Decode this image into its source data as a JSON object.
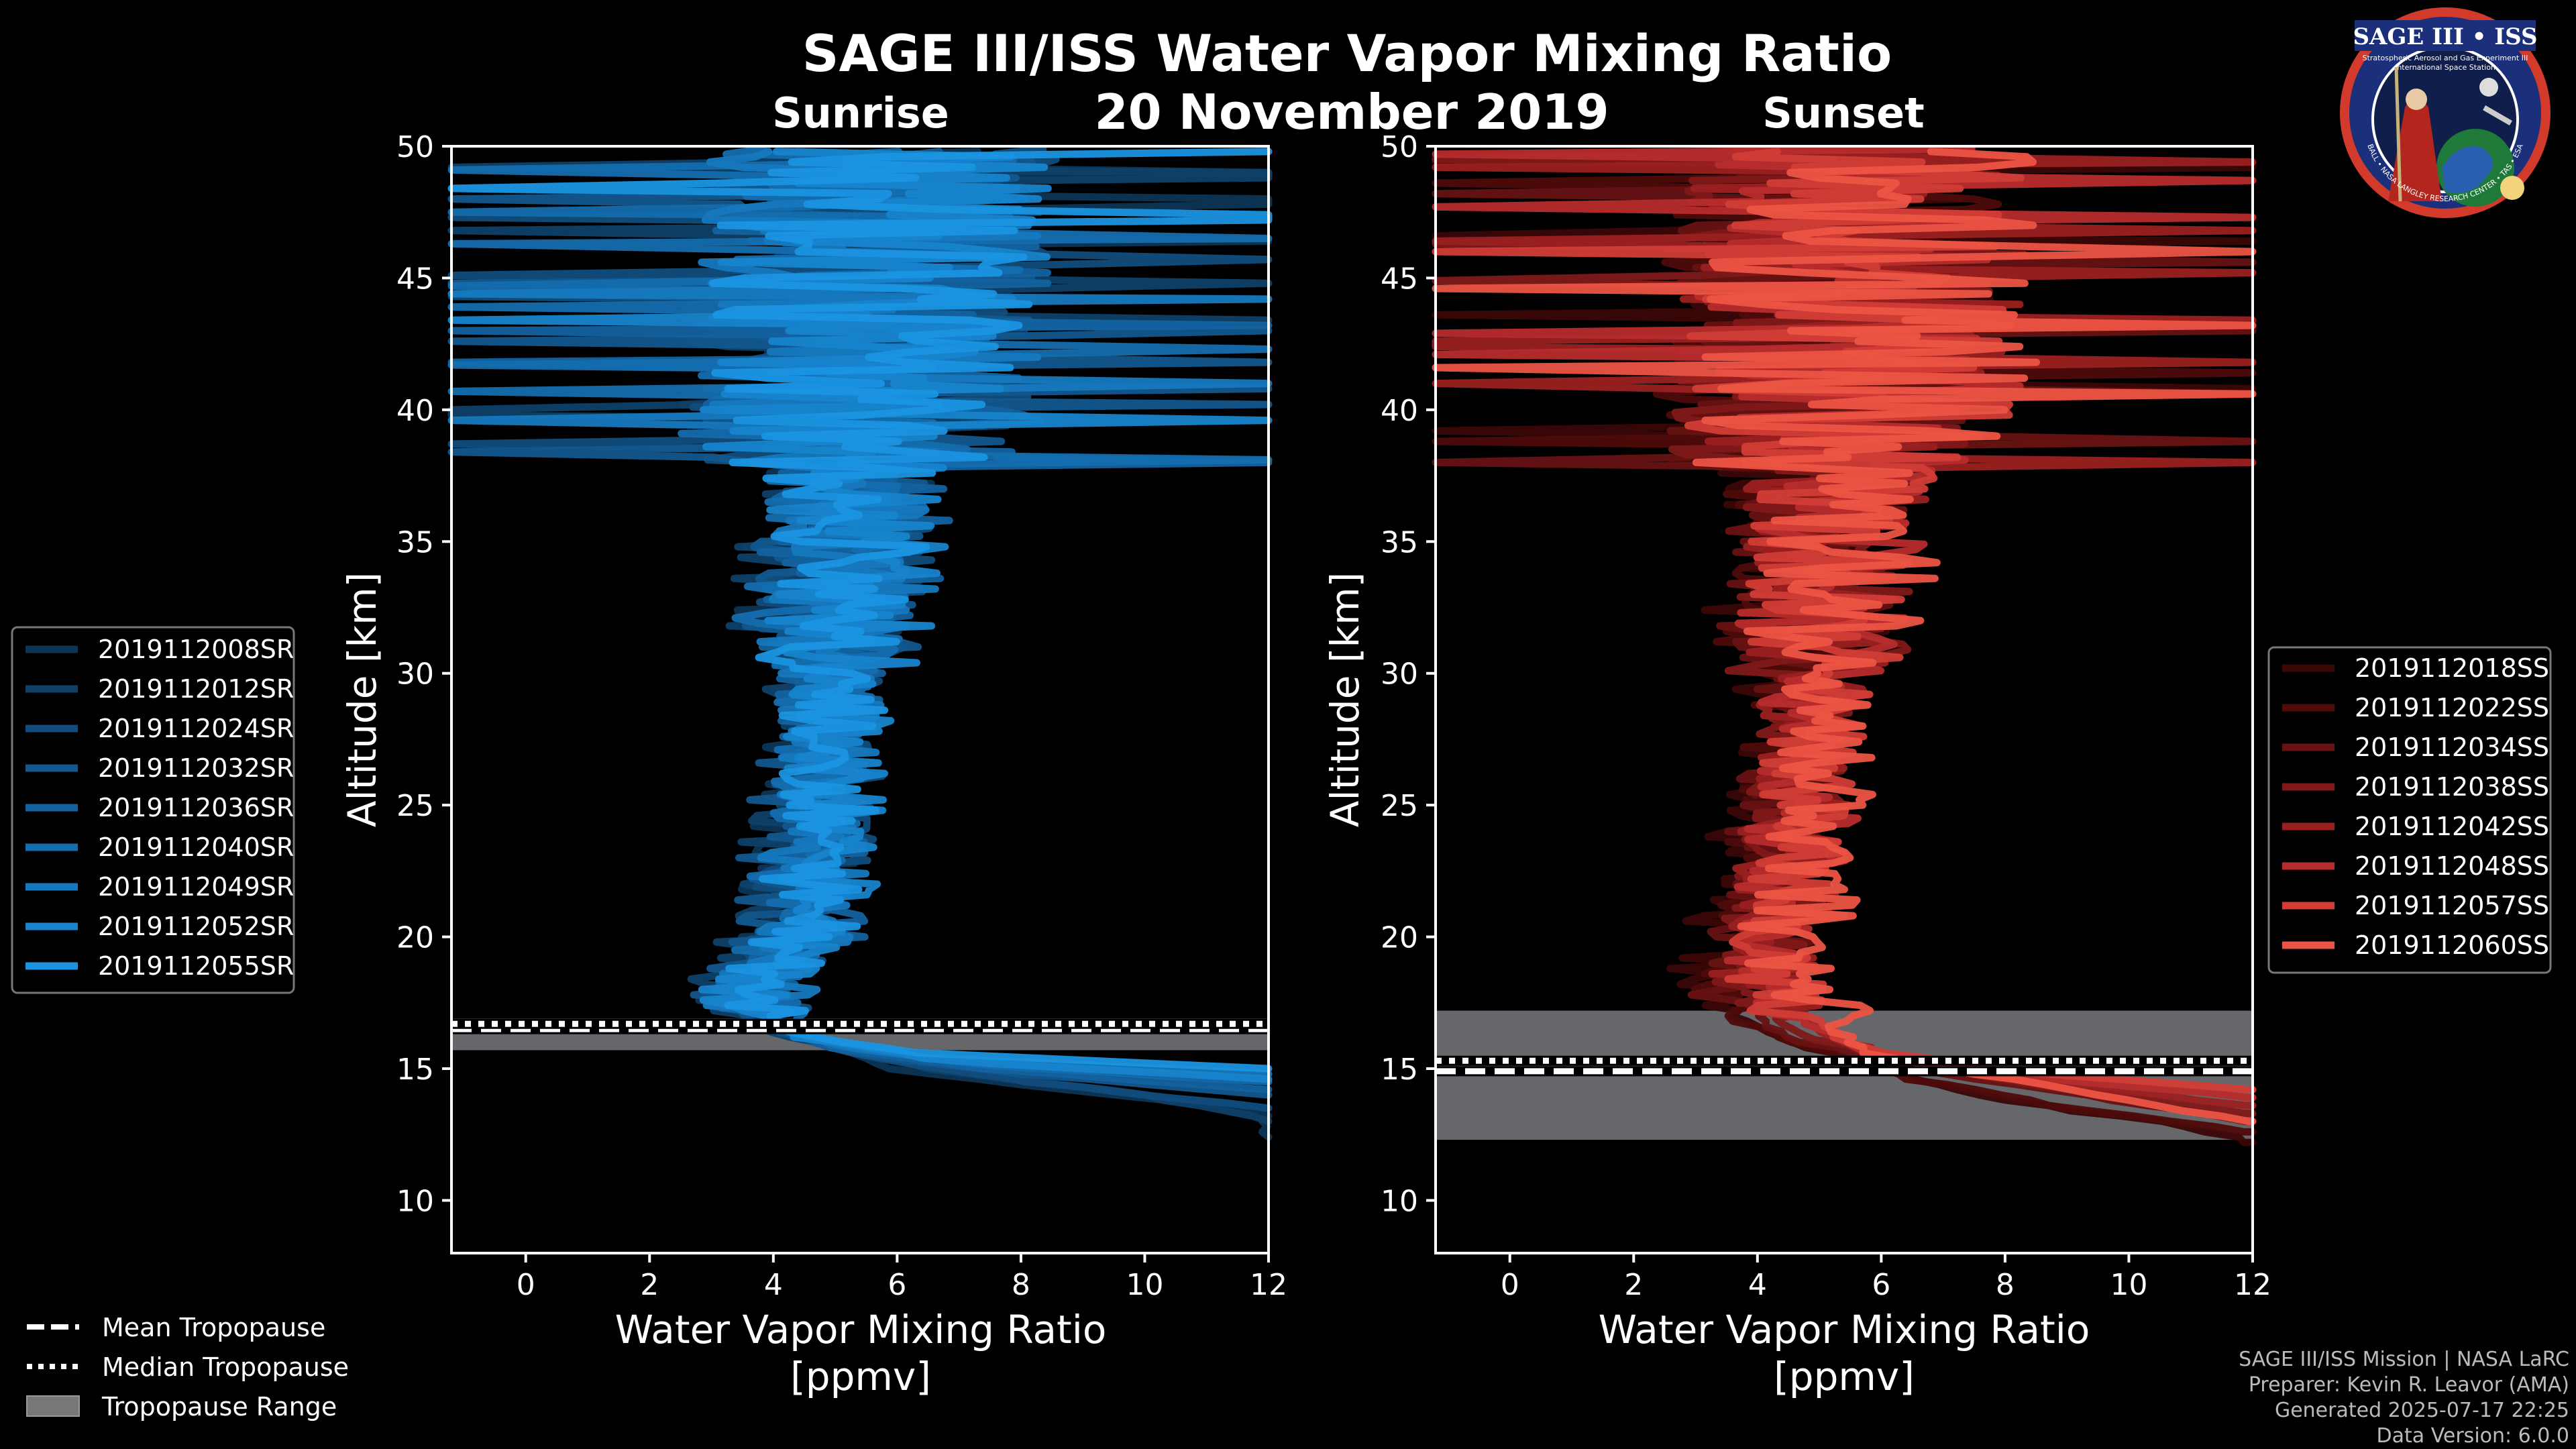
{
  "chart_data": [
    {
      "type": "line",
      "panel": "sunrise",
      "title": "SAGE III/ISS Water Vapor Mixing Ratio",
      "subtitle": "Sunrise",
      "date": "20 November 2019",
      "xlabel": "Water Vapor Mixing Ratio",
      "xlabel_units": "[ppmv]",
      "ylabel": "Altitude [km]",
      "xlim": [
        -1.2,
        12
      ],
      "ylim": [
        8,
        50
      ],
      "xticks": [
        "0",
        "2",
        "4",
        "6",
        "8",
        "10",
        "12"
      ],
      "yticks": [
        "10",
        "15",
        "20",
        "25",
        "30",
        "35",
        "40",
        "45",
        "50"
      ],
      "tropopause": {
        "mean": 16.5,
        "median": 16.7,
        "range": [
          15.7,
          16.9
        ]
      },
      "series": [
        {
          "name": "2019112008SR",
          "color": "#0d3555",
          "profile": [
            [
              12.4,
              12
            ],
            [
              13.4,
              12
            ],
            [
              14.1,
              9
            ],
            [
              15.0,
              6
            ],
            [
              16.0,
              4.6
            ],
            [
              17.2,
              3.4
            ],
            [
              20,
              4.2
            ],
            [
              25,
              4.6
            ],
            [
              30,
              4.8
            ],
            [
              35,
              5.0
            ],
            [
              40,
              5.3
            ],
            [
              45,
              5.4
            ],
            [
              50,
              5.4
            ]
          ]
        },
        {
          "name": "2019112012SR",
          "color": "#0f4068",
          "profile": [
            [
              13.0,
              12
            ],
            [
              14.0,
              10
            ],
            [
              15.0,
              6.5
            ],
            [
              16.2,
              4.2
            ],
            [
              17.5,
              3.2
            ],
            [
              20,
              3.9
            ],
            [
              25,
              4.4
            ],
            [
              30,
              4.7
            ],
            [
              35,
              4.9
            ],
            [
              40,
              5.2
            ],
            [
              45,
              5.5
            ],
            [
              50,
              5.6
            ]
          ]
        },
        {
          "name": "2019112024SR",
          "color": "#114c7c",
          "profile": [
            [
              13.5,
              12
            ],
            [
              14.4,
              8.5
            ],
            [
              15.3,
              5.8
            ],
            [
              16.5,
              3.9
            ],
            [
              18,
              3.5
            ],
            [
              20,
              4.4
            ],
            [
              25,
              4.9
            ],
            [
              30,
              5.1
            ],
            [
              35,
              5.2
            ],
            [
              40,
              5.4
            ],
            [
              45,
              5.6
            ],
            [
              50,
              5.8
            ]
          ]
        },
        {
          "name": "2019112032SR",
          "color": "#12578d",
          "profile": [
            [
              14.0,
              12
            ],
            [
              14.8,
              8
            ],
            [
              15.6,
              5.2
            ],
            [
              16.8,
              3.6
            ],
            [
              18.5,
              3.6
            ],
            [
              20,
              4.1
            ],
            [
              25,
              4.5
            ],
            [
              30,
              4.9
            ],
            [
              35,
              5.1
            ],
            [
              40,
              5.3
            ],
            [
              45,
              5.4
            ],
            [
              50,
              5.5
            ]
          ]
        },
        {
          "name": "2019112036SR",
          "color": "#13629f",
          "profile": [
            [
              14.2,
              12
            ],
            [
              15.0,
              7.5
            ],
            [
              15.8,
              5.0
            ],
            [
              17.0,
              3.8
            ],
            [
              19,
              4.0
            ],
            [
              20,
              4.6
            ],
            [
              25,
              4.8
            ],
            [
              30,
              5.0
            ],
            [
              35,
              5.3
            ],
            [
              40,
              5.6
            ],
            [
              45,
              5.7
            ],
            [
              50,
              5.9
            ]
          ]
        },
        {
          "name": "2019112040SR",
          "color": "#146dae",
          "profile": [
            [
              14.5,
              12
            ],
            [
              15.2,
              7.0
            ],
            [
              16.0,
              4.8
            ],
            [
              17.3,
              4.0
            ],
            [
              19,
              3.9
            ],
            [
              20,
              4.3
            ],
            [
              25,
              4.6
            ],
            [
              30,
              4.8
            ],
            [
              35,
              5.0
            ],
            [
              40,
              5.2
            ],
            [
              45,
              5.3
            ],
            [
              50,
              5.4
            ]
          ]
        },
        {
          "name": "2019112049SR",
          "color": "#1678be",
          "profile": [
            [
              14.8,
              12
            ],
            [
              15.4,
              6.5
            ],
            [
              16.1,
              4.5
            ],
            [
              17.5,
              3.7
            ],
            [
              19.5,
              4.2
            ],
            [
              20,
              4.5
            ],
            [
              25,
              4.7
            ],
            [
              30,
              5.0
            ],
            [
              35,
              5.2
            ],
            [
              40,
              5.4
            ],
            [
              45,
              5.6
            ],
            [
              50,
              5.7
            ]
          ]
        },
        {
          "name": "2019112052SR",
          "color": "#1784cc",
          "profile": [
            [
              14.6,
              12
            ],
            [
              15.3,
              6.8
            ],
            [
              16.2,
              4.4
            ],
            [
              17.6,
              3.5
            ],
            [
              19.5,
              4.4
            ],
            [
              20,
              4.7
            ],
            [
              25,
              4.9
            ],
            [
              30,
              5.2
            ],
            [
              35,
              5.4
            ],
            [
              40,
              5.5
            ],
            [
              45,
              5.6
            ],
            [
              50,
              5.8
            ]
          ]
        },
        {
          "name": "2019112055SR",
          "color": "#1a93e0",
          "profile": [
            [
              15.0,
              12
            ],
            [
              15.6,
              6.2
            ],
            [
              16.4,
              4.2
            ],
            [
              17.8,
              3.6
            ],
            [
              19.5,
              4.3
            ],
            [
              20,
              4.6
            ],
            [
              25,
              4.8
            ],
            [
              30,
              5.0
            ],
            [
              35,
              5.1
            ],
            [
              40,
              5.3
            ],
            [
              45,
              5.5
            ],
            [
              50,
              5.6
            ]
          ]
        }
      ]
    },
    {
      "type": "line",
      "panel": "sunset",
      "subtitle": "Sunset",
      "xlabel": "Water Vapor Mixing Ratio",
      "xlabel_units": "[ppmv]",
      "ylabel": "Altitude [km]",
      "xlim": [
        -1.2,
        12
      ],
      "ylim": [
        8,
        50
      ],
      "xticks": [
        "0",
        "2",
        "4",
        "6",
        "8",
        "10",
        "12"
      ],
      "yticks": [
        "10",
        "15",
        "20",
        "25",
        "30",
        "35",
        "40",
        "45",
        "50"
      ],
      "tropopause": {
        "mean": 14.9,
        "median": 15.3,
        "range": [
          12.3,
          17.2
        ]
      },
      "series": [
        {
          "name": "2019112018SS",
          "color": "#3a0707",
          "profile": [
            [
              12.2,
              12
            ],
            [
              12.8,
              11
            ],
            [
              13.8,
              8
            ],
            [
              15.0,
              6.0
            ],
            [
              16.0,
              4.5
            ],
            [
              17.5,
              3.2
            ],
            [
              20,
              3.6
            ],
            [
              25,
              4.2
            ],
            [
              30,
              4.5
            ],
            [
              35,
              4.8
            ],
            [
              40,
              5.0
            ],
            [
              45,
              5.3
            ],
            [
              50,
              5.4
            ]
          ]
        },
        {
          "name": "2019112022SS",
          "color": "#4e0b0b",
          "profile": [
            [
              12.6,
              12
            ],
            [
              13.5,
              9
            ],
            [
              14.6,
              6.5
            ],
            [
              15.8,
              4.8
            ],
            [
              17.0,
              3.5
            ],
            [
              20,
              3.9
            ],
            [
              25,
              4.3
            ],
            [
              30,
              4.6
            ],
            [
              35,
              4.9
            ],
            [
              40,
              5.1
            ],
            [
              45,
              5.2
            ],
            [
              50,
              5.3
            ]
          ]
        },
        {
          "name": "2019112034SS",
          "color": "#661212",
          "profile": [
            [
              13.0,
              12
            ],
            [
              13.9,
              9.5
            ],
            [
              14.9,
              6.8
            ],
            [
              16.2,
              4.4
            ],
            [
              17.6,
              3.6
            ],
            [
              20,
              4.0
            ],
            [
              25,
              4.5
            ],
            [
              30,
              4.8
            ],
            [
              35,
              5.0
            ],
            [
              40,
              5.2
            ],
            [
              45,
              5.4
            ],
            [
              50,
              5.5
            ]
          ]
        },
        {
          "name": "2019112038SS",
          "color": "#7f1919",
          "profile": [
            [
              13.3,
              12
            ],
            [
              14.2,
              9.0
            ],
            [
              15.2,
              6.4
            ],
            [
              16.4,
              4.6
            ],
            [
              18.0,
              3.8
            ],
            [
              20,
              4.2
            ],
            [
              25,
              4.6
            ],
            [
              30,
              4.9
            ],
            [
              35,
              5.1
            ],
            [
              40,
              5.3
            ],
            [
              45,
              5.5
            ],
            [
              50,
              5.6
            ]
          ]
        },
        {
          "name": "2019112042SS",
          "color": "#9a2020",
          "profile": [
            [
              13.6,
              12
            ],
            [
              14.5,
              8.5
            ],
            [
              15.5,
              6.0
            ],
            [
              16.6,
              4.9
            ],
            [
              18.2,
              4.0
            ],
            [
              20,
              4.3
            ],
            [
              25,
              4.7
            ],
            [
              30,
              5.0
            ],
            [
              35,
              5.2
            ],
            [
              40,
              5.4
            ],
            [
              45,
              5.6
            ],
            [
              50,
              5.7
            ]
          ]
        },
        {
          "name": "2019112048SS",
          "color": "#b72c2c",
          "profile": [
            [
              13.9,
              12
            ],
            [
              14.8,
              8.0
            ],
            [
              15.7,
              5.8
            ],
            [
              16.8,
              4.7
            ],
            [
              18.4,
              4.1
            ],
            [
              20,
              4.4
            ],
            [
              25,
              4.8
            ],
            [
              30,
              5.0
            ],
            [
              35,
              5.3
            ],
            [
              40,
              5.5
            ],
            [
              45,
              5.7
            ],
            [
              50,
              5.8
            ]
          ]
        },
        {
          "name": "2019112057SS",
          "color": "#d13d36",
          "profile": [
            [
              14.2,
              12
            ],
            [
              15.0,
              7.5
            ],
            [
              15.9,
              5.5
            ],
            [
              17.0,
              4.8
            ],
            [
              18.6,
              4.2
            ],
            [
              20,
              4.5
            ],
            [
              25,
              4.9
            ],
            [
              30,
              5.1
            ],
            [
              35,
              5.4
            ],
            [
              40,
              5.6
            ],
            [
              45,
              5.8
            ],
            [
              50,
              5.9
            ]
          ]
        },
        {
          "name": "2019112060SS",
          "color": "#ec5445",
          "profile": [
            [
              13.0,
              12
            ],
            [
              14.6,
              8.0
            ],
            [
              15.6,
              5.8
            ],
            [
              16.5,
              5.2
            ],
            [
              17.2,
              5.5
            ],
            [
              18.8,
              4.4
            ],
            [
              20,
              4.6
            ],
            [
              25,
              5.0
            ],
            [
              30,
              5.2
            ],
            [
              35,
              5.5
            ],
            [
              40,
              5.7
            ],
            [
              45,
              5.9
            ],
            [
              50,
              6.0
            ]
          ]
        }
      ]
    }
  ],
  "shared_legend": {
    "mean": "Mean Tropopause",
    "median": "Median Tropopause",
    "range": "Tropopause Range"
  },
  "credits": {
    "line1": "SAGE III/ISS Mission | NASA LaRC",
    "line2": "Preparer: Kevin R. Leavor (AMA)",
    "line3": "Generated 2025-07-17 22:25",
    "line4": "Data Version: 6.0.0"
  },
  "logo": {
    "title": "SAGE III • ISS",
    "subtitle1": "Stratospheric Aerosol and Gas Experiment III",
    "subtitle2": "International Space Station",
    "ring": "BALL • NASA LANGLEY RESEARCH CENTER • TAS • ESA"
  }
}
